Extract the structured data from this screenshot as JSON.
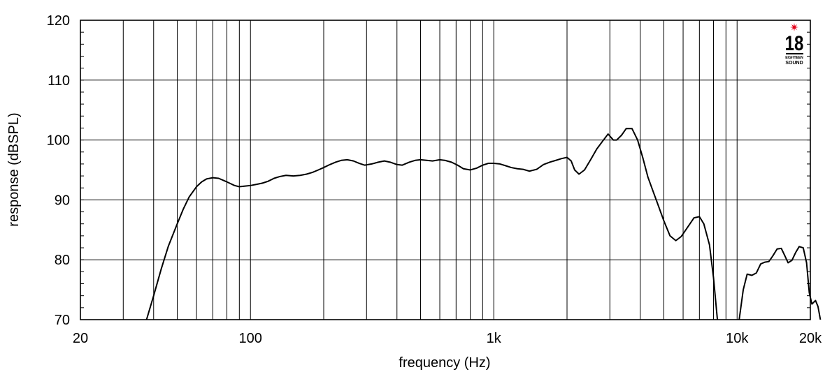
{
  "chart_data": {
    "type": "line",
    "title": "",
    "xlabel": "frequency (Hz)",
    "ylabel": "response (dBSPL)",
    "x_scale": "log",
    "xlim": [
      20,
      20000
    ],
    "ylim": [
      70,
      120
    ],
    "grid": true,
    "x_tick_labels": [
      {
        "value": 20,
        "label": "20"
      },
      {
        "value": 100,
        "label": "100"
      },
      {
        "value": 1000,
        "label": "1k"
      },
      {
        "value": 10000,
        "label": "10k"
      },
      {
        "value": 20000,
        "label": "20k"
      }
    ],
    "y_ticks": [
      70,
      80,
      90,
      100,
      110,
      120
    ],
    "y_tick_labels": [
      "70",
      "80",
      "90",
      "100",
      "110",
      "120"
    ],
    "series": [
      {
        "color": "#000000",
        "segments": [
          [
            [
              37.4,
              70
            ],
            [
              40,
              74
            ],
            [
              43,
              78.5
            ],
            [
              46,
              82.3
            ],
            [
              50,
              86
            ],
            [
              53,
              88.5
            ],
            [
              56,
              90.5
            ],
            [
              60,
              92.2
            ],
            [
              63,
              93
            ],
            [
              66,
              93.5
            ],
            [
              70,
              93.7
            ],
            [
              74,
              93.6
            ],
            [
              78,
              93.2
            ],
            [
              82,
              92.8
            ],
            [
              86,
              92.4
            ],
            [
              90,
              92.2
            ],
            [
              95,
              92.3
            ],
            [
              100,
              92.4
            ],
            [
              106,
              92.6
            ],
            [
              112,
              92.8
            ],
            [
              118,
              93.1
            ],
            [
              125,
              93.6
            ],
            [
              132,
              93.9
            ],
            [
              140,
              94.1
            ],
            [
              150,
              94.0
            ],
            [
              160,
              94.1
            ],
            [
              170,
              94.3
            ],
            [
              180,
              94.6
            ],
            [
              190,
              95.0
            ],
            [
              200,
              95.4
            ],
            [
              212,
              95.9
            ],
            [
              224,
              96.3
            ],
            [
              236,
              96.6
            ],
            [
              250,
              96.7
            ],
            [
              265,
              96.5
            ],
            [
              280,
              96.1
            ],
            [
              295,
              95.8
            ],
            [
              315,
              96.0
            ],
            [
              335,
              96.3
            ],
            [
              355,
              96.5
            ],
            [
              375,
              96.3
            ],
            [
              400,
              95.9
            ],
            [
              420,
              95.8
            ],
            [
              450,
              96.3
            ],
            [
              475,
              96.6
            ],
            [
              500,
              96.7
            ],
            [
              530,
              96.6
            ],
            [
              560,
              96.5
            ],
            [
              600,
              96.7
            ],
            [
              630,
              96.6
            ],
            [
              670,
              96.3
            ],
            [
              710,
              95.8
            ],
            [
              750,
              95.2
            ],
            [
              800,
              95.0
            ],
            [
              850,
              95.3
            ],
            [
              900,
              95.8
            ],
            [
              950,
              96.1
            ],
            [
              1000,
              96.1
            ],
            [
              1060,
              96.0
            ],
            [
              1120,
              95.7
            ],
            [
              1180,
              95.4
            ],
            [
              1250,
              95.2
            ],
            [
              1320,
              95.1
            ],
            [
              1400,
              94.8
            ],
            [
              1500,
              95.1
            ],
            [
              1600,
              95.9
            ],
            [
              1700,
              96.3
            ],
            [
              1800,
              96.6
            ],
            [
              1900,
              96.9
            ],
            [
              2000,
              97.1
            ],
            [
              2080,
              96.5
            ],
            [
              2150,
              95.0
            ],
            [
              2240,
              94.3
            ],
            [
              2360,
              95.0
            ],
            [
              2500,
              96.7
            ],
            [
              2650,
              98.5
            ],
            [
              2800,
              99.8
            ],
            [
              2950,
              101.0
            ],
            [
              3100,
              100.0
            ],
            [
              3200,
              100.0
            ],
            [
              3350,
              100.8
            ],
            [
              3500,
              101.9
            ],
            [
              3700,
              101.9
            ],
            [
              3900,
              100.0
            ],
            [
              4100,
              97.0
            ],
            [
              4300,
              93.8
            ],
            [
              4500,
              91.6
            ],
            [
              4750,
              89.0
            ],
            [
              5000,
              86.5
            ],
            [
              5300,
              84.0
            ],
            [
              5600,
              83.2
            ],
            [
              5900,
              83.9
            ],
            [
              6300,
              85.6
            ],
            [
              6650,
              87.0
            ],
            [
              7000,
              87.2
            ],
            [
              7300,
              86.0
            ],
            [
              7700,
              82.5
            ],
            [
              8000,
              77.0
            ],
            [
              8300,
              70.0
            ]
          ],
          [
            [
              10200,
              70
            ],
            [
              10600,
              75.0
            ],
            [
              11000,
              77.6
            ],
            [
              11500,
              77.4
            ],
            [
              12000,
              77.8
            ],
            [
              12500,
              79.3
            ],
            [
              13000,
              79.6
            ],
            [
              13500,
              79.7
            ],
            [
              14000,
              80.6
            ],
            [
              14600,
              81.8
            ],
            [
              15200,
              81.9
            ],
            [
              15700,
              80.7
            ],
            [
              16200,
              79.5
            ],
            [
              16800,
              79.9
            ],
            [
              17400,
              81.2
            ],
            [
              18000,
              82.2
            ],
            [
              18700,
              82.0
            ],
            [
              19300,
              79.5
            ],
            [
              19800,
              74.5
            ],
            [
              20300,
              72.6
            ],
            [
              21000,
              73.2
            ],
            [
              21500,
              72.2
            ],
            [
              22000,
              70.0
            ]
          ]
        ]
      }
    ]
  },
  "logo": {
    "number": "18",
    "line1": "EIGHTEEN",
    "line2": "SOUND",
    "star_color": "#e3001b"
  }
}
